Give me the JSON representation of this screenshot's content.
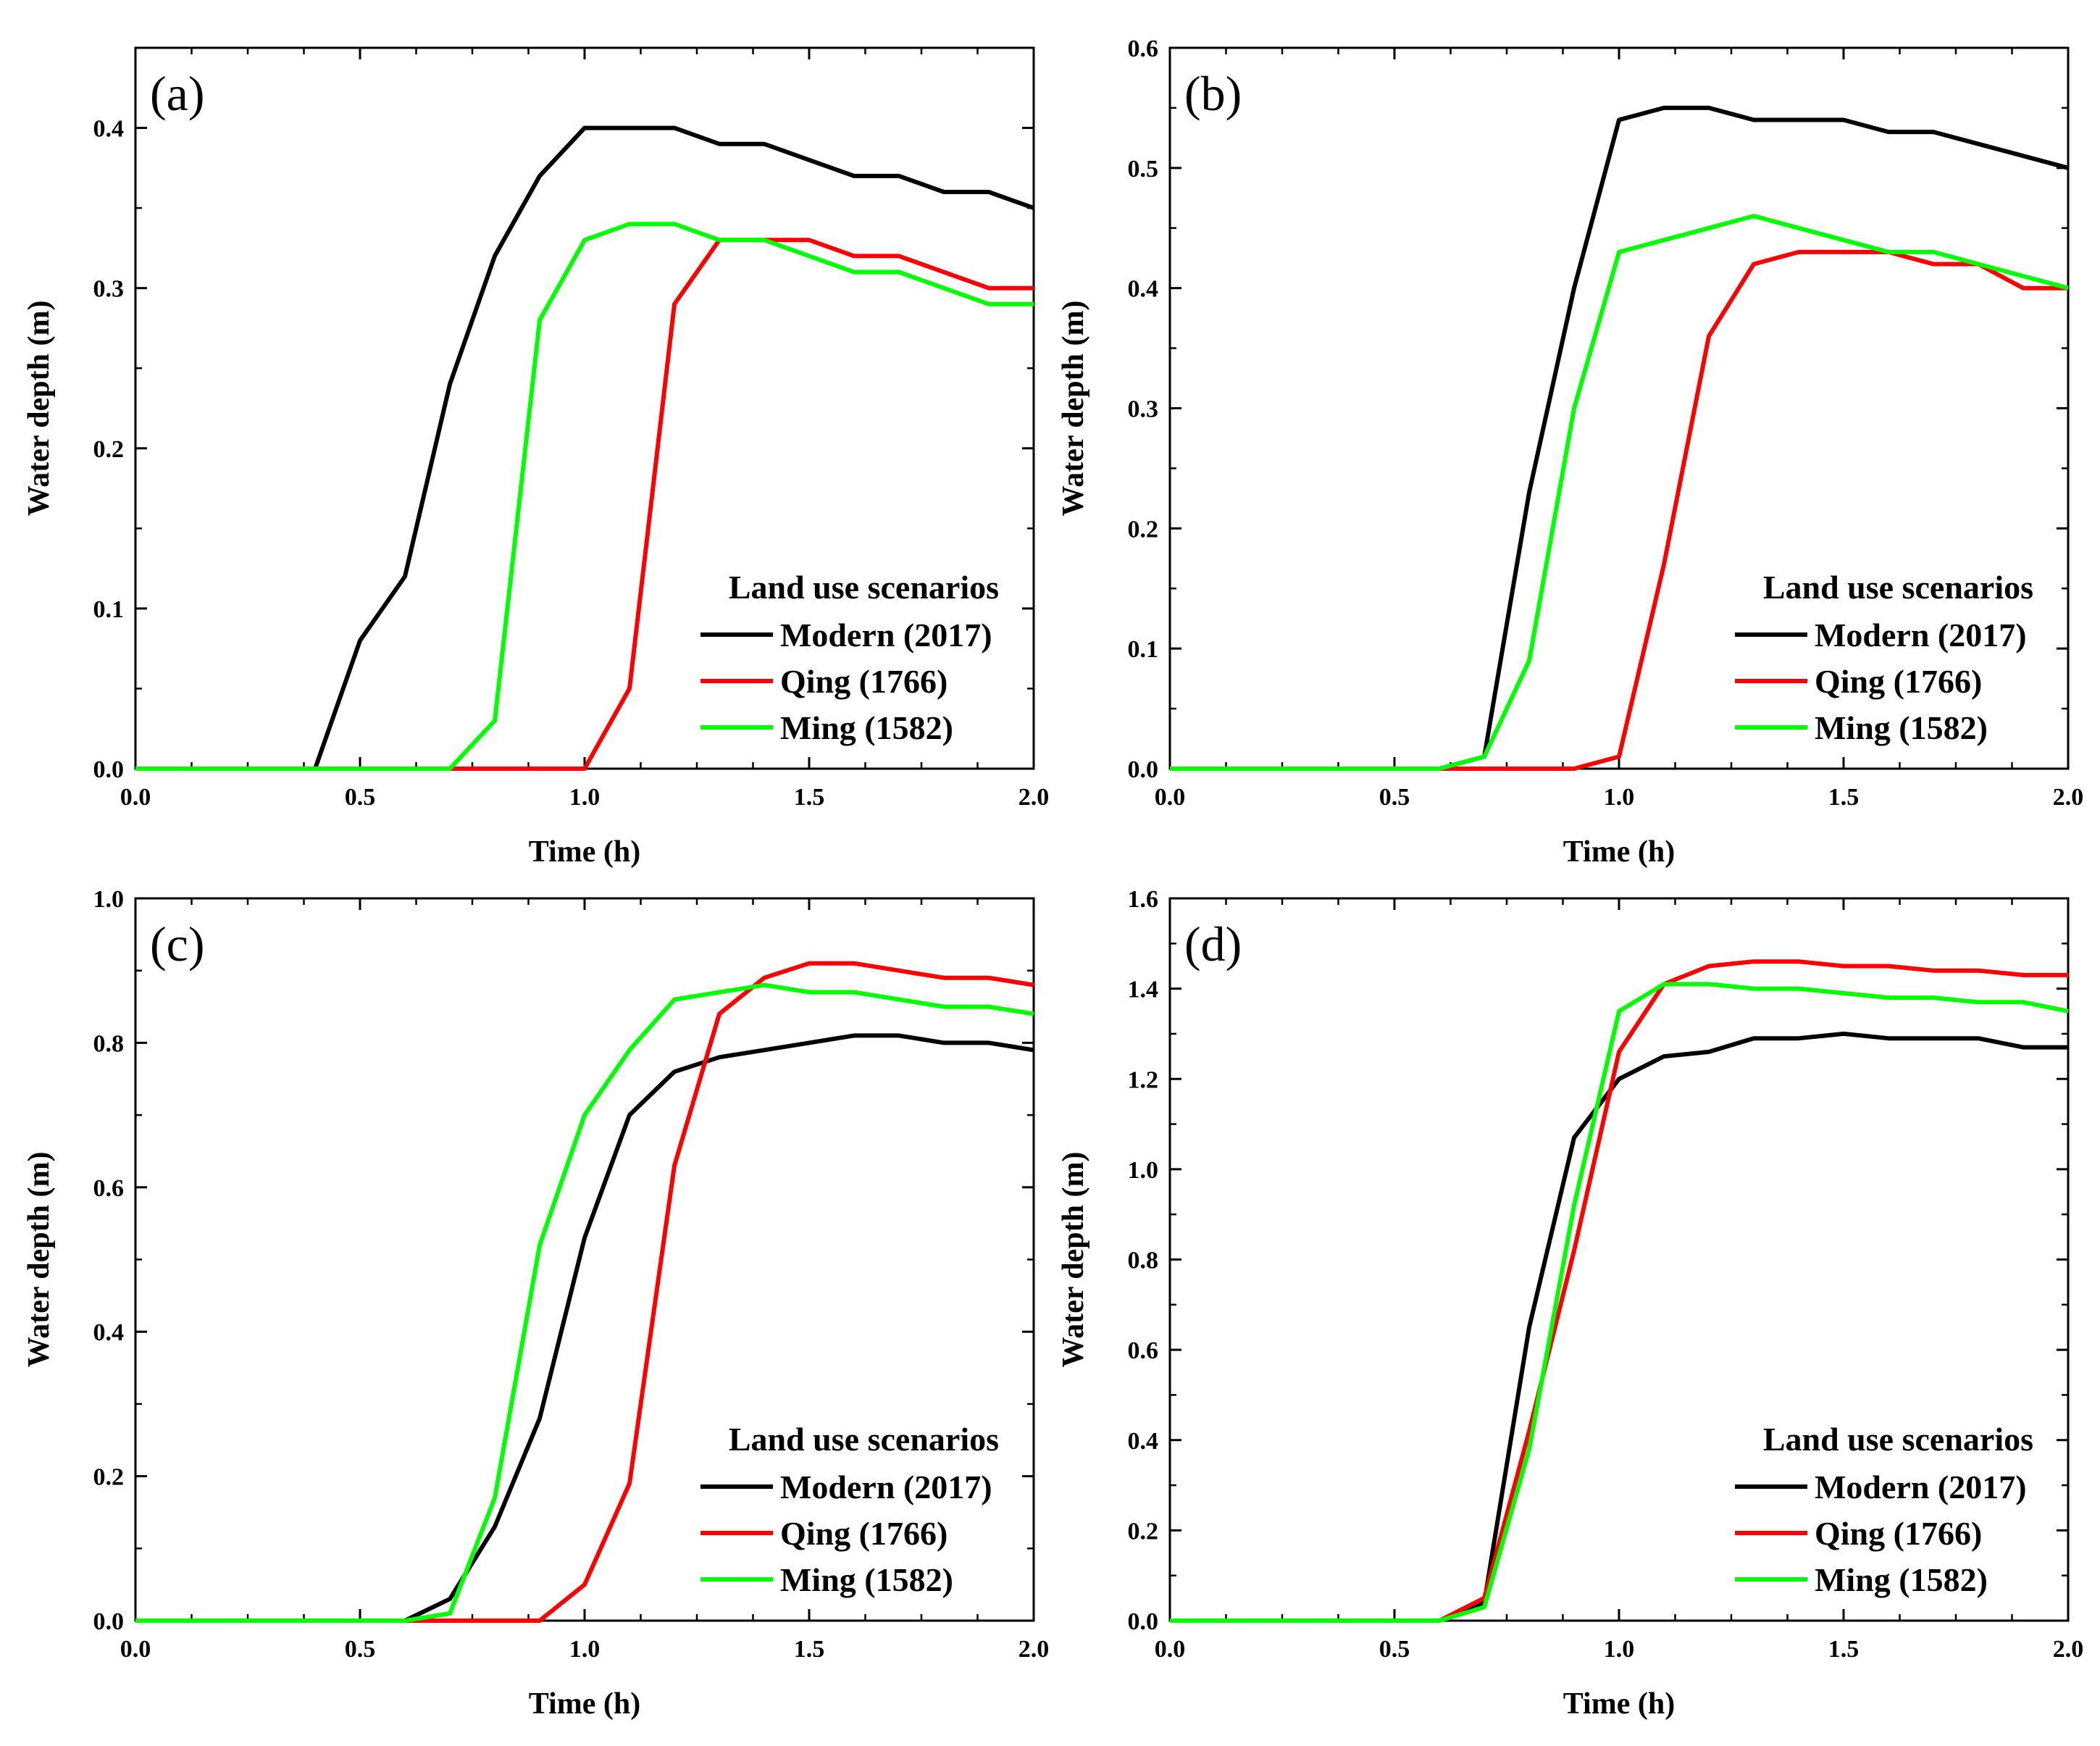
{
  "chart_data": [
    {
      "type": "line",
      "panel_label": "(a)",
      "xlabel": "Time (h)",
      "ylabel": "Water depth (m)",
      "xlim": [
        0,
        2
      ],
      "ylim": [
        0,
        0.45
      ],
      "xticks": [
        0,
        0.5,
        1,
        1.5,
        2
      ],
      "xtick_labels": [
        "0.0",
        "0.5",
        "1.0",
        "1.5",
        "2.0"
      ],
      "yticks": [
        0,
        0.1,
        0.2,
        0.3,
        0.4
      ],
      "ytick_labels": [
        "0.0",
        "0.1",
        "0.2",
        "0.3",
        "0.4"
      ],
      "legend_title": "Land use scenarios",
      "legend_position": "bottom-right",
      "series": [
        {
          "name": "Modern (2017)",
          "color": "#000000",
          "x": [
            0,
            0.1,
            0.2,
            0.3,
            0.4,
            0.5,
            0.6,
            0.7,
            0.8,
            0.9,
            1.0,
            1.1,
            1.2,
            1.3,
            1.4,
            1.5,
            1.6,
            1.7,
            1.8,
            1.9,
            2.0
          ],
          "y": [
            0,
            0,
            0,
            0,
            0,
            0.08,
            0.12,
            0.24,
            0.32,
            0.37,
            0.4,
            0.4,
            0.4,
            0.39,
            0.39,
            0.38,
            0.37,
            0.37,
            0.36,
            0.36,
            0.35
          ]
        },
        {
          "name": "Qing (1766)",
          "color": "#ff0000",
          "x": [
            0,
            0.1,
            0.2,
            0.3,
            0.4,
            0.5,
            0.6,
            0.7,
            0.8,
            0.9,
            1.0,
            1.1,
            1.2,
            1.3,
            1.4,
            1.5,
            1.6,
            1.7,
            1.8,
            1.9,
            2.0
          ],
          "y": [
            0,
            0,
            0,
            0,
            0,
            0,
            0,
            0,
            0,
            0,
            0,
            0.05,
            0.29,
            0.33,
            0.33,
            0.33,
            0.32,
            0.32,
            0.31,
            0.3,
            0.3
          ]
        },
        {
          "name": "Ming (1582)",
          "color": "#00ff00",
          "x": [
            0,
            0.1,
            0.2,
            0.3,
            0.4,
            0.5,
            0.6,
            0.7,
            0.8,
            0.9,
            1.0,
            1.1,
            1.2,
            1.3,
            1.4,
            1.5,
            1.6,
            1.7,
            1.8,
            1.9,
            2.0
          ],
          "y": [
            0,
            0,
            0,
            0,
            0,
            0,
            0,
            0,
            0.03,
            0.28,
            0.33,
            0.34,
            0.34,
            0.33,
            0.33,
            0.32,
            0.31,
            0.31,
            0.3,
            0.29,
            0.29
          ]
        }
      ]
    },
    {
      "type": "line",
      "panel_label": "(b)",
      "xlabel": "Time (h)",
      "ylabel": "Water depth (m)",
      "xlim": [
        0,
        2
      ],
      "ylim": [
        0,
        0.6
      ],
      "xticks": [
        0,
        0.5,
        1,
        1.5,
        2
      ],
      "xtick_labels": [
        "0.0",
        "0.5",
        "1.0",
        "1.5",
        "2.0"
      ],
      "yticks": [
        0,
        0.1,
        0.2,
        0.3,
        0.4,
        0.5,
        0.6
      ],
      "ytick_labels": [
        "0.0",
        "0.1",
        "0.2",
        "0.3",
        "0.4",
        "0.5",
        "0.6"
      ],
      "legend_title": "Land use scenarios",
      "legend_position": "bottom-right",
      "series": [
        {
          "name": "Modern (2017)",
          "color": "#000000",
          "x": [
            0,
            0.1,
            0.2,
            0.3,
            0.4,
            0.5,
            0.6,
            0.7,
            0.8,
            0.9,
            1.0,
            1.1,
            1.2,
            1.3,
            1.4,
            1.5,
            1.6,
            1.7,
            1.8,
            1.9,
            2.0
          ],
          "y": [
            0,
            0,
            0,
            0,
            0,
            0,
            0,
            0.01,
            0.23,
            0.4,
            0.54,
            0.55,
            0.55,
            0.54,
            0.54,
            0.54,
            0.53,
            0.53,
            0.52,
            0.51,
            0.5
          ]
        },
        {
          "name": "Qing (1766)",
          "color": "#ff0000",
          "x": [
            0,
            0.1,
            0.2,
            0.3,
            0.4,
            0.5,
            0.6,
            0.7,
            0.8,
            0.9,
            1.0,
            1.1,
            1.2,
            1.3,
            1.4,
            1.5,
            1.6,
            1.7,
            1.8,
            1.9,
            2.0
          ],
          "y": [
            0,
            0,
            0,
            0,
            0,
            0,
            0,
            0,
            0,
            0,
            0.01,
            0.17,
            0.36,
            0.42,
            0.43,
            0.43,
            0.43,
            0.42,
            0.42,
            0.4,
            0.4
          ]
        },
        {
          "name": "Ming (1582)",
          "color": "#00ff00",
          "x": [
            0,
            0.1,
            0.2,
            0.3,
            0.4,
            0.5,
            0.6,
            0.7,
            0.8,
            0.9,
            1.0,
            1.1,
            1.2,
            1.3,
            1.4,
            1.5,
            1.6,
            1.7,
            1.8,
            1.9,
            2.0
          ],
          "y": [
            0,
            0,
            0,
            0,
            0,
            0,
            0,
            0.01,
            0.09,
            0.3,
            0.43,
            0.44,
            0.45,
            0.46,
            0.45,
            0.44,
            0.43,
            0.43,
            0.42,
            0.41,
            0.4
          ]
        }
      ]
    },
    {
      "type": "line",
      "panel_label": "(c)",
      "xlabel": "Time (h)",
      "ylabel": "Water depth (m)",
      "xlim": [
        0,
        2
      ],
      "ylim": [
        0,
        1.0
      ],
      "xticks": [
        0,
        0.5,
        1,
        1.5,
        2
      ],
      "xtick_labels": [
        "0.0",
        "0.5",
        "1.0",
        "1.5",
        "2.0"
      ],
      "yticks": [
        0,
        0.2,
        0.4,
        0.6,
        0.8,
        1.0
      ],
      "ytick_labels": [
        "0.0",
        "0.2",
        "0.4",
        "0.6",
        "0.8",
        "1.0"
      ],
      "legend_title": "Land use scenarios",
      "legend_position": "bottom-right",
      "series": [
        {
          "name": "Modern (2017)",
          "color": "#000000",
          "x": [
            0,
            0.1,
            0.2,
            0.3,
            0.4,
            0.5,
            0.6,
            0.7,
            0.8,
            0.9,
            1.0,
            1.1,
            1.2,
            1.3,
            1.4,
            1.5,
            1.6,
            1.7,
            1.8,
            1.9,
            2.0
          ],
          "y": [
            0,
            0,
            0,
            0,
            0,
            0,
            0,
            0.03,
            0.13,
            0.28,
            0.53,
            0.7,
            0.76,
            0.78,
            0.79,
            0.8,
            0.81,
            0.81,
            0.8,
            0.8,
            0.79
          ]
        },
        {
          "name": "Qing (1766)",
          "color": "#ff0000",
          "x": [
            0,
            0.1,
            0.2,
            0.3,
            0.4,
            0.5,
            0.6,
            0.7,
            0.8,
            0.9,
            1.0,
            1.1,
            1.2,
            1.3,
            1.4,
            1.5,
            1.6,
            1.7,
            1.8,
            1.9,
            2.0
          ],
          "y": [
            0,
            0,
            0,
            0,
            0,
            0,
            0,
            0,
            0,
            0,
            0.05,
            0.19,
            0.63,
            0.84,
            0.89,
            0.91,
            0.91,
            0.9,
            0.89,
            0.89,
            0.88
          ]
        },
        {
          "name": "Ming (1582)",
          "color": "#00ff00",
          "x": [
            0,
            0.1,
            0.2,
            0.3,
            0.4,
            0.5,
            0.6,
            0.7,
            0.8,
            0.9,
            1.0,
            1.1,
            1.2,
            1.3,
            1.4,
            1.5,
            1.6,
            1.7,
            1.8,
            1.9,
            2.0
          ],
          "y": [
            0,
            0,
            0,
            0,
            0,
            0,
            0,
            0.01,
            0.17,
            0.52,
            0.7,
            0.79,
            0.86,
            0.87,
            0.88,
            0.87,
            0.87,
            0.86,
            0.85,
            0.85,
            0.84
          ]
        }
      ]
    },
    {
      "type": "line",
      "panel_label": "(d)",
      "xlabel": "Time (h)",
      "ylabel": "Water depth (m)",
      "xlim": [
        0,
        2
      ],
      "ylim": [
        0,
        1.6
      ],
      "xticks": [
        0,
        0.5,
        1,
        1.5,
        2
      ],
      "xtick_labels": [
        "0.0",
        "0.5",
        "1.0",
        "1.5",
        "2.0"
      ],
      "yticks": [
        0,
        0.2,
        0.4,
        0.6,
        0.8,
        1.0,
        1.2,
        1.4,
        1.6
      ],
      "ytick_labels": [
        "0.0",
        "0.2",
        "0.4",
        "0.6",
        "0.8",
        "1.0",
        "1.2",
        "1.4",
        "1.6"
      ],
      "legend_title": "Land use scenarios",
      "legend_position": "bottom-right",
      "series": [
        {
          "name": "Modern (2017)",
          "color": "#000000",
          "x": [
            0,
            0.1,
            0.2,
            0.3,
            0.4,
            0.5,
            0.6,
            0.7,
            0.8,
            0.9,
            1.0,
            1.1,
            1.2,
            1.3,
            1.4,
            1.5,
            1.6,
            1.7,
            1.8,
            1.9,
            2.0
          ],
          "y": [
            0,
            0,
            0,
            0,
            0,
            0,
            0,
            0.04,
            0.65,
            1.07,
            1.2,
            1.25,
            1.26,
            1.29,
            1.29,
            1.3,
            1.29,
            1.29,
            1.29,
            1.27,
            1.27
          ]
        },
        {
          "name": "Qing (1766)",
          "color": "#ff0000",
          "x": [
            0,
            0.1,
            0.2,
            0.3,
            0.4,
            0.5,
            0.6,
            0.7,
            0.8,
            0.9,
            1.0,
            1.1,
            1.2,
            1.3,
            1.4,
            1.5,
            1.6,
            1.7,
            1.8,
            1.9,
            2.0
          ],
          "y": [
            0,
            0,
            0,
            0,
            0,
            0,
            0,
            0.05,
            0.42,
            0.82,
            1.26,
            1.41,
            1.45,
            1.46,
            1.46,
            1.45,
            1.45,
            1.44,
            1.44,
            1.43,
            1.43
          ]
        },
        {
          "name": "Ming (1582)",
          "color": "#00ff00",
          "x": [
            0,
            0.1,
            0.2,
            0.3,
            0.4,
            0.5,
            0.6,
            0.7,
            0.8,
            0.9,
            1.0,
            1.1,
            1.2,
            1.3,
            1.4,
            1.5,
            1.6,
            1.7,
            1.8,
            1.9,
            2.0
          ],
          "y": [
            0,
            0,
            0,
            0,
            0,
            0,
            0,
            0.03,
            0.38,
            0.92,
            1.35,
            1.41,
            1.41,
            1.4,
            1.4,
            1.39,
            1.38,
            1.38,
            1.37,
            1.37,
            1.35
          ]
        }
      ]
    }
  ]
}
